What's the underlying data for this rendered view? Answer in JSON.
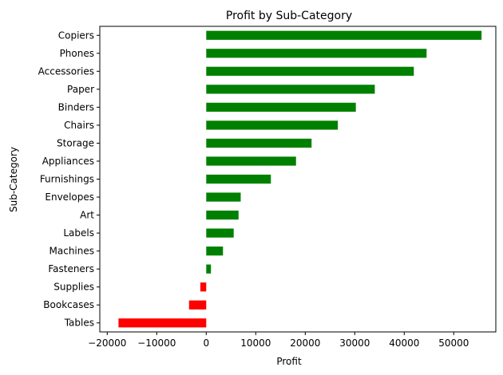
{
  "chart_data": {
    "type": "bar",
    "orientation": "horizontal",
    "title": "Profit by Sub-Category",
    "xlabel": "Profit",
    "ylabel": "Sub-Category",
    "categories": [
      "Copiers",
      "Phones",
      "Accessories",
      "Paper",
      "Binders",
      "Chairs",
      "Storage",
      "Appliances",
      "Furnishings",
      "Envelopes",
      "Art",
      "Labels",
      "Machines",
      "Fasteners",
      "Supplies",
      "Bookcases",
      "Tables"
    ],
    "values": [
      55618,
      44516,
      41937,
      34053,
      30222,
      26590,
      21279,
      18138,
      13059,
      6964,
      6528,
      5546,
      3385,
      950,
      -1189,
      -3473,
      -17725
    ],
    "xlim": [
      -21500,
      58500
    ],
    "xticks": [
      -20000,
      -10000,
      0,
      10000,
      20000,
      30000,
      40000,
      50000
    ],
    "xtick_labels": [
      "−20000",
      "−10000",
      "0",
      "10000",
      "20000",
      "30000",
      "40000",
      "50000"
    ],
    "positive_color": "#008000",
    "negative_color": "#ff0000",
    "grid": false,
    "legend": "none"
  }
}
